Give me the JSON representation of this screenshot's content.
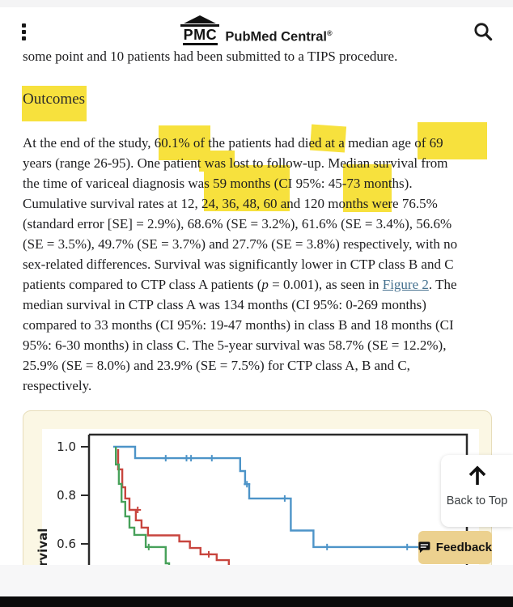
{
  "header": {
    "logo_pmc": "PMC",
    "logo_rest": "PubMed Central",
    "registered": "®"
  },
  "article": {
    "partial_top_line": "some point and 10 patients had been submitted to a TIPS procedure.",
    "section_heading": "Outcomes",
    "lines": [
      "At the end of the study, 60.1% of the patients had died at a median age of 69",
      "years (range 26-95). One patient was lost to follow-up. Median survival from",
      "the time of variceal diagnosis was 59 months (CI 95%: 45-73 months).",
      "Cumulative survival rates at 12, 24, 36, 48, 60 and 120 months were 76.5%",
      "(standard error [SE] = 2.9%), 68.6% (SE = 3.2%), 61.6% (SE = 3.4%), 56.6%",
      "(SE = 3.5%), 49.7% (SE = 3.7%) and 27.7% (SE = 3.8%) respectively, with no",
      "sex-related differences. Survival was significantly lower in CTP class B and C",
      "median survival in CTP class A was 134 months (CI 95%: 0-269 months)",
      "compared to 33 months (CI 95%: 19-47 months) in class B and 18 months (CI",
      "95%: 6-30 months) in class C. The 5-year survival was 58.7% (SE = 12.2%),",
      "25.9% (SE = 8.0%) and 23.9% (SE = 7.5%) for CTP class A, B and C,",
      "respectively."
    ],
    "line8": {
      "before": "patients compared to CTP class A patients (",
      "p_italic": "p",
      "mid": " = 0.001), as seen in ",
      "link": "Figure 2",
      "after": ". The"
    },
    "highlighted_phrases": [
      "Outcomes",
      "60.1%",
      "died",
      "age of 69",
      "was 59 months",
      "45-73"
    ]
  },
  "chart_data": {
    "type": "line",
    "subtype": "kaplan-meier-survival-curves",
    "ylabel_visible": "rvival",
    "ytick_labels": [
      "1.0",
      "0.8",
      "0.6"
    ],
    "yticks": [
      1.0,
      0.8,
      0.6
    ],
    "ylim_visible": [
      0.51,
      1.04
    ],
    "grid": false,
    "x_axis_note": "x axis cropped below viewport",
    "series": [
      {
        "name": "blue-curve",
        "color": "#4d94c8",
        "points": [
          [
            0.064,
            1.0
          ],
          [
            0.122,
            1.0
          ],
          [
            0.122,
            0.953
          ],
          [
            0.4,
            0.953
          ],
          [
            0.4,
            0.9
          ],
          [
            0.413,
            0.9
          ],
          [
            0.413,
            0.846
          ],
          [
            0.424,
            0.846
          ],
          [
            0.424,
            0.787
          ],
          [
            0.534,
            0.787
          ],
          [
            0.534,
            0.655
          ],
          [
            0.594,
            0.655
          ],
          [
            0.594,
            0.587
          ],
          [
            1.0,
            0.587
          ]
        ],
        "censors": [
          [
            0.203,
            0.953
          ],
          [
            0.258,
            0.953
          ],
          [
            0.27,
            0.953
          ],
          [
            0.325,
            0.953
          ],
          [
            0.418,
            0.846
          ],
          [
            0.518,
            0.787
          ],
          [
            0.63,
            0.587
          ],
          [
            0.842,
            0.587
          ]
        ]
      },
      {
        "name": "red-curve",
        "color": "#c8453e",
        "points": [
          [
            0.077,
            0.99
          ],
          [
            0.077,
            0.907
          ],
          [
            0.088,
            0.907
          ],
          [
            0.088,
            0.833
          ],
          [
            0.096,
            0.833
          ],
          [
            0.096,
            0.787
          ],
          [
            0.107,
            0.787
          ],
          [
            0.107,
            0.74
          ],
          [
            0.124,
            0.74
          ],
          [
            0.124,
            0.697
          ],
          [
            0.139,
            0.697
          ],
          [
            0.139,
            0.667
          ],
          [
            0.156,
            0.667
          ],
          [
            0.156,
            0.635
          ],
          [
            0.239,
            0.635
          ],
          [
            0.239,
            0.61
          ],
          [
            0.267,
            0.61
          ],
          [
            0.267,
            0.583
          ],
          [
            0.295,
            0.583
          ],
          [
            0.295,
            0.557
          ],
          [
            0.338,
            0.557
          ],
          [
            0.338,
            0.533
          ],
          [
            0.37,
            0.533
          ],
          [
            0.37,
            0.508
          ]
        ],
        "censors": [
          [
            0.129,
            0.74
          ],
          [
            0.317,
            0.557
          ]
        ]
      },
      {
        "name": "green-curve",
        "color": "#47a15a",
        "points": [
          [
            0.071,
            1.0
          ],
          [
            0.071,
            0.927
          ],
          [
            0.079,
            0.927
          ],
          [
            0.079,
            0.847
          ],
          [
            0.086,
            0.847
          ],
          [
            0.086,
            0.773
          ],
          [
            0.096,
            0.773
          ],
          [
            0.096,
            0.713
          ],
          [
            0.107,
            0.713
          ],
          [
            0.107,
            0.667
          ],
          [
            0.12,
            0.667
          ],
          [
            0.12,
            0.637
          ],
          [
            0.15,
            0.637
          ],
          [
            0.15,
            0.587
          ],
          [
            0.203,
            0.587
          ],
          [
            0.203,
            0.52
          ],
          [
            0.212,
            0.52
          ],
          [
            0.212,
            0.5
          ]
        ],
        "censors": [
          [
            0.158,
            0.587
          ]
        ]
      }
    ]
  },
  "widgets": {
    "back_to_top": "Back to Top",
    "feedback": "Feedback"
  },
  "colors": {
    "highlight": "#f7e13d",
    "link": "#44708e",
    "figure_bg": "#fbf7e4",
    "feedback_bg": "#ecd18f"
  }
}
